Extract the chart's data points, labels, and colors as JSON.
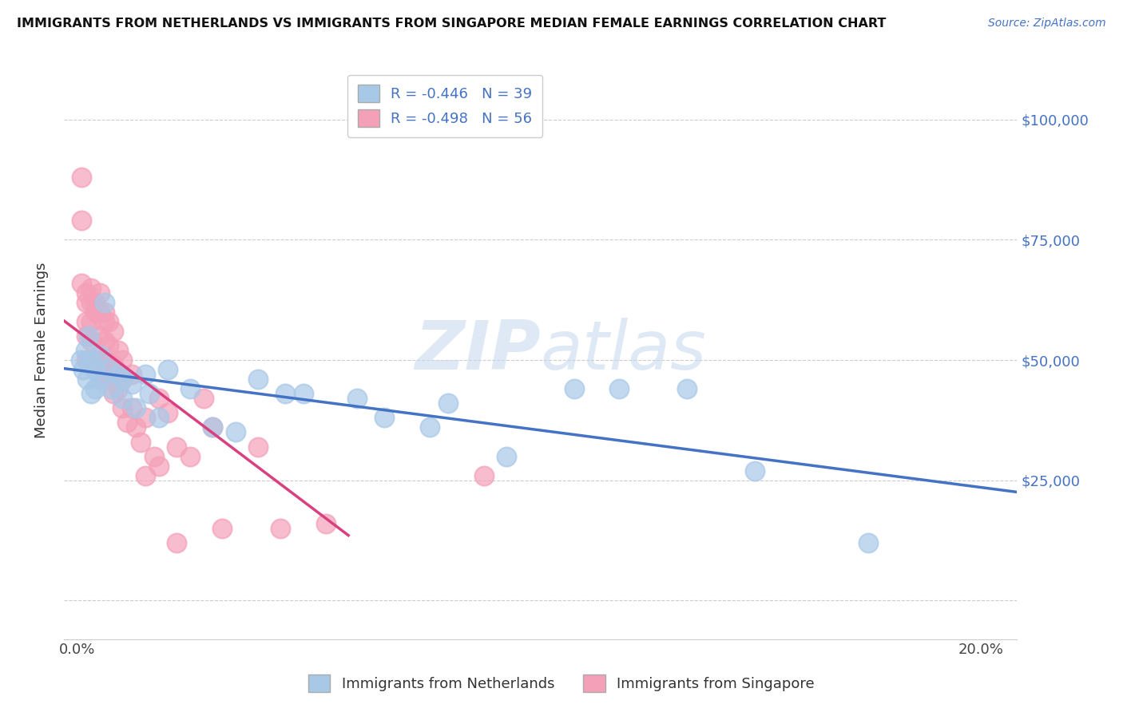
{
  "title": "IMMIGRANTS FROM NETHERLANDS VS IMMIGRANTS FROM SINGAPORE MEDIAN FEMALE EARNINGS CORRELATION CHART",
  "source": "Source: ZipAtlas.com",
  "ylabel": "Median Female Earnings",
  "xlabel": "",
  "background_color": "#ffffff",
  "watermark_zip": "ZIP",
  "watermark_atlas": "atlas",
  "netherlands_color": "#a8c8e8",
  "singapore_color": "#f4a0b8",
  "netherlands_line_color": "#4472c4",
  "singapore_line_color": "#d94080",
  "netherlands_R": -0.446,
  "netherlands_N": 39,
  "singapore_R": -0.498,
  "singapore_N": 56,
  "yticks": [
    0,
    25000,
    50000,
    75000,
    100000
  ],
  "ytick_labels": [
    "",
    "$25,000",
    "$50,000",
    "$75,000",
    "$100,000"
  ],
  "xticks": [
    0.0,
    0.05,
    0.1,
    0.15,
    0.2
  ],
  "xtick_labels": [
    "0.0%",
    "",
    "",
    "",
    "20.0%"
  ],
  "xlim": [
    -0.003,
    0.208
  ],
  "ylim": [
    -8000,
    112000
  ],
  "netherlands_x": [
    0.0008,
    0.0012,
    0.0018,
    0.0022,
    0.0025,
    0.003,
    0.003,
    0.004,
    0.004,
    0.005,
    0.005,
    0.006,
    0.007,
    0.0075,
    0.009,
    0.01,
    0.01,
    0.012,
    0.013,
    0.015,
    0.016,
    0.018,
    0.02,
    0.025,
    0.03,
    0.035,
    0.04,
    0.046,
    0.05,
    0.062,
    0.068,
    0.078,
    0.082,
    0.095,
    0.11,
    0.12,
    0.135,
    0.15,
    0.175
  ],
  "netherlands_y": [
    50000,
    48000,
    52000,
    46000,
    55000,
    50000,
    43000,
    48000,
    44000,
    51000,
    46000,
    62000,
    48000,
    44000,
    47000,
    46000,
    42000,
    45000,
    40000,
    47000,
    43000,
    38000,
    48000,
    44000,
    36000,
    35000,
    46000,
    43000,
    43000,
    42000,
    38000,
    36000,
    41000,
    30000,
    44000,
    44000,
    44000,
    27000,
    12000
  ],
  "singapore_x": [
    0.001,
    0.001,
    0.001,
    0.002,
    0.002,
    0.002,
    0.002,
    0.002,
    0.003,
    0.003,
    0.003,
    0.003,
    0.004,
    0.004,
    0.004,
    0.005,
    0.005,
    0.005,
    0.005,
    0.006,
    0.006,
    0.006,
    0.006,
    0.006,
    0.007,
    0.007,
    0.007,
    0.008,
    0.008,
    0.008,
    0.009,
    0.009,
    0.01,
    0.01,
    0.01,
    0.011,
    0.012,
    0.012,
    0.013,
    0.014,
    0.015,
    0.015,
    0.017,
    0.018,
    0.018,
    0.02,
    0.022,
    0.022,
    0.025,
    0.028,
    0.03,
    0.032,
    0.04,
    0.045,
    0.055,
    0.09
  ],
  "singapore_y": [
    88000,
    79000,
    66000,
    64000,
    62000,
    58000,
    55000,
    50000,
    65000,
    62000,
    58000,
    54000,
    62000,
    60000,
    50000,
    64000,
    60000,
    55000,
    50000,
    60000,
    58000,
    54000,
    50000,
    46000,
    58000,
    53000,
    47000,
    56000,
    49000,
    43000,
    52000,
    44000,
    50000,
    46000,
    40000,
    37000,
    47000,
    40000,
    36000,
    33000,
    38000,
    26000,
    30000,
    42000,
    28000,
    39000,
    32000,
    12000,
    30000,
    42000,
    36000,
    15000,
    32000,
    15000,
    16000,
    26000
  ]
}
